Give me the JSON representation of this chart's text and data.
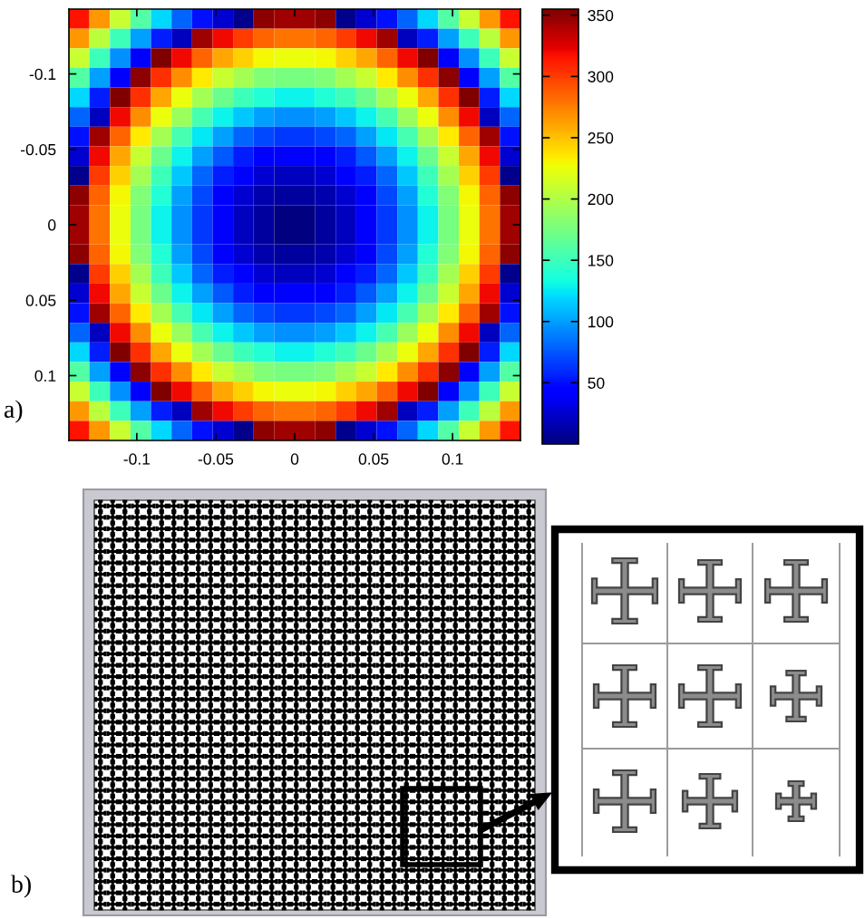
{
  "chart_data": [
    {
      "type": "heatmap",
      "x": [
        -0.1365,
        -0.1235,
        -0.1105,
        -0.0975,
        -0.0845,
        -0.0715,
        -0.0585,
        -0.0455,
        -0.0325,
        -0.0195,
        -0.0065,
        0.0065,
        0.0195,
        0.0325,
        0.0455,
        0.0585,
        0.0715,
        0.0845,
        0.0975,
        0.1105,
        0.1235,
        0.1365
      ],
      "y": [
        -0.1365,
        -0.1235,
        -0.1105,
        -0.0975,
        -0.0845,
        -0.0715,
        -0.0585,
        -0.0455,
        -0.0325,
        -0.0195,
        -0.0065,
        0.0065,
        0.0195,
        0.0325,
        0.0455,
        0.0585,
        0.0715,
        0.0845,
        0.0975,
        0.1105,
        0.1235,
        0.1365
      ],
      "cells": [
        [
          315,
          265,
          210,
          160,
          120,
          80,
          50,
          25,
          5,
          350,
          345,
          345,
          350,
          5,
          25,
          50,
          80,
          120,
          160,
          210,
          265,
          315
        ],
        [
          265,
          205,
          150,
          100,
          55,
          20,
          345,
          320,
          300,
          285,
          280,
          280,
          285,
          300,
          320,
          345,
          20,
          55,
          100,
          150,
          205,
          265
        ],
        [
          210,
          150,
          95,
          45,
          355,
          320,
          285,
          260,
          245,
          230,
          225,
          225,
          230,
          245,
          260,
          285,
          320,
          355,
          45,
          95,
          150,
          210
        ],
        [
          160,
          100,
          45,
          350,
          305,
          270,
          235,
          210,
          195,
          180,
          175,
          175,
          180,
          195,
          210,
          235,
          270,
          305,
          350,
          45,
          100,
          160
        ],
        [
          120,
          55,
          355,
          305,
          260,
          225,
          195,
          170,
          150,
          140,
          130,
          130,
          140,
          150,
          170,
          195,
          225,
          260,
          305,
          355,
          55,
          120
        ],
        [
          80,
          20,
          320,
          270,
          225,
          190,
          155,
          130,
          115,
          100,
          95,
          95,
          100,
          115,
          130,
          155,
          190,
          225,
          270,
          320,
          20,
          80
        ],
        [
          50,
          345,
          285,
          235,
          195,
          155,
          125,
          100,
          80,
          70,
          65,
          65,
          70,
          80,
          100,
          125,
          155,
          195,
          235,
          285,
          345,
          50
        ],
        [
          25,
          320,
          260,
          210,
          170,
          130,
          100,
          75,
          55,
          45,
          40,
          40,
          45,
          55,
          75,
          100,
          130,
          170,
          210,
          260,
          320,
          25
        ],
        [
          5,
          300,
          245,
          195,
          150,
          115,
          80,
          55,
          40,
          25,
          20,
          20,
          25,
          40,
          55,
          80,
          115,
          150,
          195,
          245,
          300,
          5
        ],
        [
          350,
          285,
          230,
          180,
          140,
          100,
          70,
          45,
          25,
          15,
          10,
          10,
          15,
          25,
          45,
          70,
          100,
          140,
          180,
          230,
          285,
          350
        ],
        [
          345,
          280,
          225,
          175,
          130,
          95,
          65,
          40,
          20,
          10,
          0,
          0,
          10,
          20,
          40,
          65,
          95,
          130,
          175,
          225,
          280,
          345
        ],
        [
          345,
          280,
          225,
          175,
          130,
          95,
          65,
          40,
          20,
          10,
          0,
          0,
          10,
          20,
          40,
          65,
          95,
          130,
          175,
          225,
          280,
          345
        ],
        [
          350,
          285,
          230,
          180,
          140,
          100,
          70,
          45,
          25,
          15,
          10,
          10,
          15,
          25,
          45,
          70,
          100,
          140,
          180,
          230,
          285,
          350
        ],
        [
          5,
          300,
          245,
          195,
          150,
          115,
          80,
          55,
          40,
          25,
          20,
          20,
          25,
          40,
          55,
          80,
          115,
          150,
          195,
          245,
          300,
          5
        ],
        [
          25,
          320,
          260,
          210,
          170,
          130,
          100,
          75,
          55,
          45,
          40,
          40,
          45,
          55,
          75,
          100,
          130,
          170,
          210,
          260,
          320,
          25
        ],
        [
          50,
          345,
          285,
          235,
          195,
          155,
          125,
          100,
          80,
          70,
          65,
          65,
          70,
          80,
          100,
          125,
          155,
          195,
          235,
          285,
          345,
          50
        ],
        [
          80,
          20,
          320,
          270,
          225,
          190,
          155,
          130,
          115,
          100,
          95,
          95,
          100,
          115,
          130,
          155,
          190,
          225,
          270,
          320,
          20,
          80
        ],
        [
          120,
          55,
          355,
          305,
          260,
          225,
          195,
          170,
          150,
          140,
          130,
          130,
          140,
          150,
          170,
          195,
          225,
          260,
          305,
          355,
          55,
          120
        ],
        [
          160,
          100,
          45,
          350,
          305,
          270,
          235,
          210,
          195,
          180,
          175,
          175,
          180,
          195,
          210,
          235,
          270,
          305,
          350,
          45,
          100,
          160
        ],
        [
          210,
          150,
          95,
          45,
          355,
          320,
          285,
          260,
          245,
          230,
          225,
          225,
          230,
          245,
          260,
          285,
          320,
          355,
          45,
          95,
          150,
          210
        ],
        [
          265,
          205,
          150,
          100,
          55,
          20,
          345,
          320,
          300,
          285,
          280,
          280,
          285,
          300,
          320,
          345,
          20,
          55,
          100,
          150,
          205,
          265
        ],
        [
          315,
          265,
          210,
          160,
          120,
          80,
          50,
          25,
          5,
          350,
          345,
          345,
          350,
          5,
          25,
          50,
          80,
          120,
          160,
          210,
          265,
          315
        ]
      ],
      "clim": [
        0,
        355
      ],
      "cticks": [
        50,
        100,
        150,
        200,
        250,
        300,
        350
      ],
      "xlim": [
        -0.143,
        0.143
      ],
      "ylim": [
        0.143,
        -0.143
      ],
      "xticks": [
        -0.1,
        -0.05,
        0,
        0.05,
        0.1
      ],
      "yticks": [
        -0.1,
        -0.05,
        0,
        0.05,
        0.1
      ],
      "annotations": [
        "a)"
      ]
    },
    {
      "type": "other",
      "annotations": [
        "b)"
      ]
    }
  ]
}
